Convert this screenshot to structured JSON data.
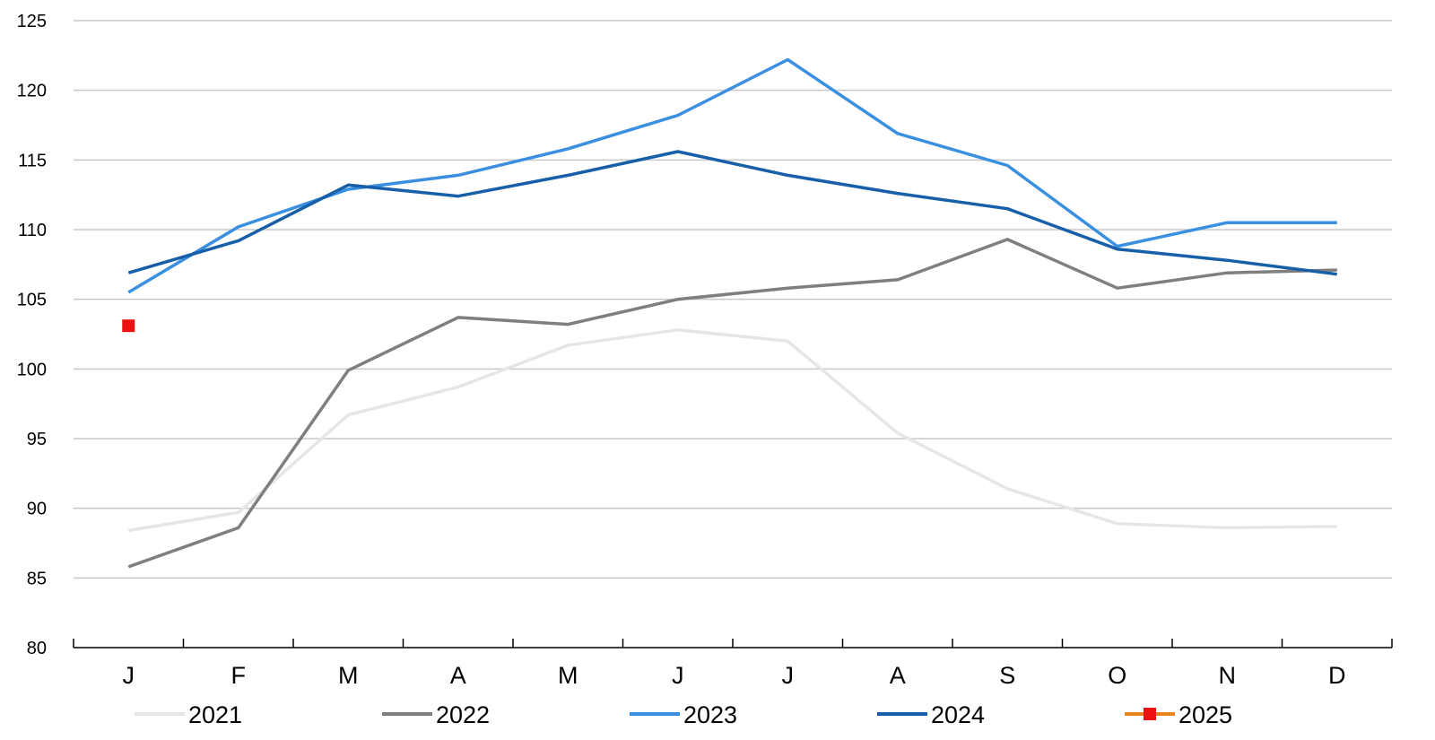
{
  "chart_data": {
    "type": "line",
    "title": "",
    "xlabel": "",
    "ylabel": "",
    "categories": [
      "J",
      "F",
      "M",
      "A",
      "M",
      "J",
      "J",
      "A",
      "S",
      "O",
      "N",
      "D"
    ],
    "ylim": [
      80,
      125
    ],
    "yticks": [
      80,
      85,
      90,
      95,
      100,
      105,
      110,
      115,
      120,
      125
    ],
    "grid": "horizontal",
    "legend_position": "bottom",
    "series": [
      {
        "name": "2021",
        "color": "#e6e6e6",
        "marker": "none",
        "values": [
          88.4,
          89.7,
          96.7,
          98.7,
          101.7,
          102.8,
          102.0,
          95.4,
          91.4,
          88.9,
          88.6,
          88.7
        ]
      },
      {
        "name": "2022",
        "color": "#7f7f7f",
        "marker": "none",
        "values": [
          85.8,
          88.6,
          99.9,
          103.7,
          103.2,
          105.0,
          105.8,
          106.4,
          109.3,
          105.8,
          106.9,
          107.1
        ]
      },
      {
        "name": "2023",
        "color": "#3b8fe0",
        "marker": "none",
        "values": [
          105.5,
          110.2,
          112.9,
          113.9,
          115.8,
          118.2,
          122.2,
          116.9,
          114.6,
          108.8,
          110.5,
          110.5
        ]
      },
      {
        "name": "2024",
        "color": "#175fa8",
        "marker": "none",
        "values": [
          106.9,
          109.2,
          113.2,
          112.4,
          113.9,
          115.6,
          113.9,
          112.6,
          111.5,
          108.6,
          107.8,
          106.8
        ]
      },
      {
        "name": "2025",
        "color": "#e8841f",
        "marker": "square",
        "marker_color": "#ee1111",
        "values": [
          103.1,
          null,
          null,
          null,
          null,
          null,
          null,
          null,
          null,
          null,
          null,
          null
        ]
      }
    ]
  }
}
